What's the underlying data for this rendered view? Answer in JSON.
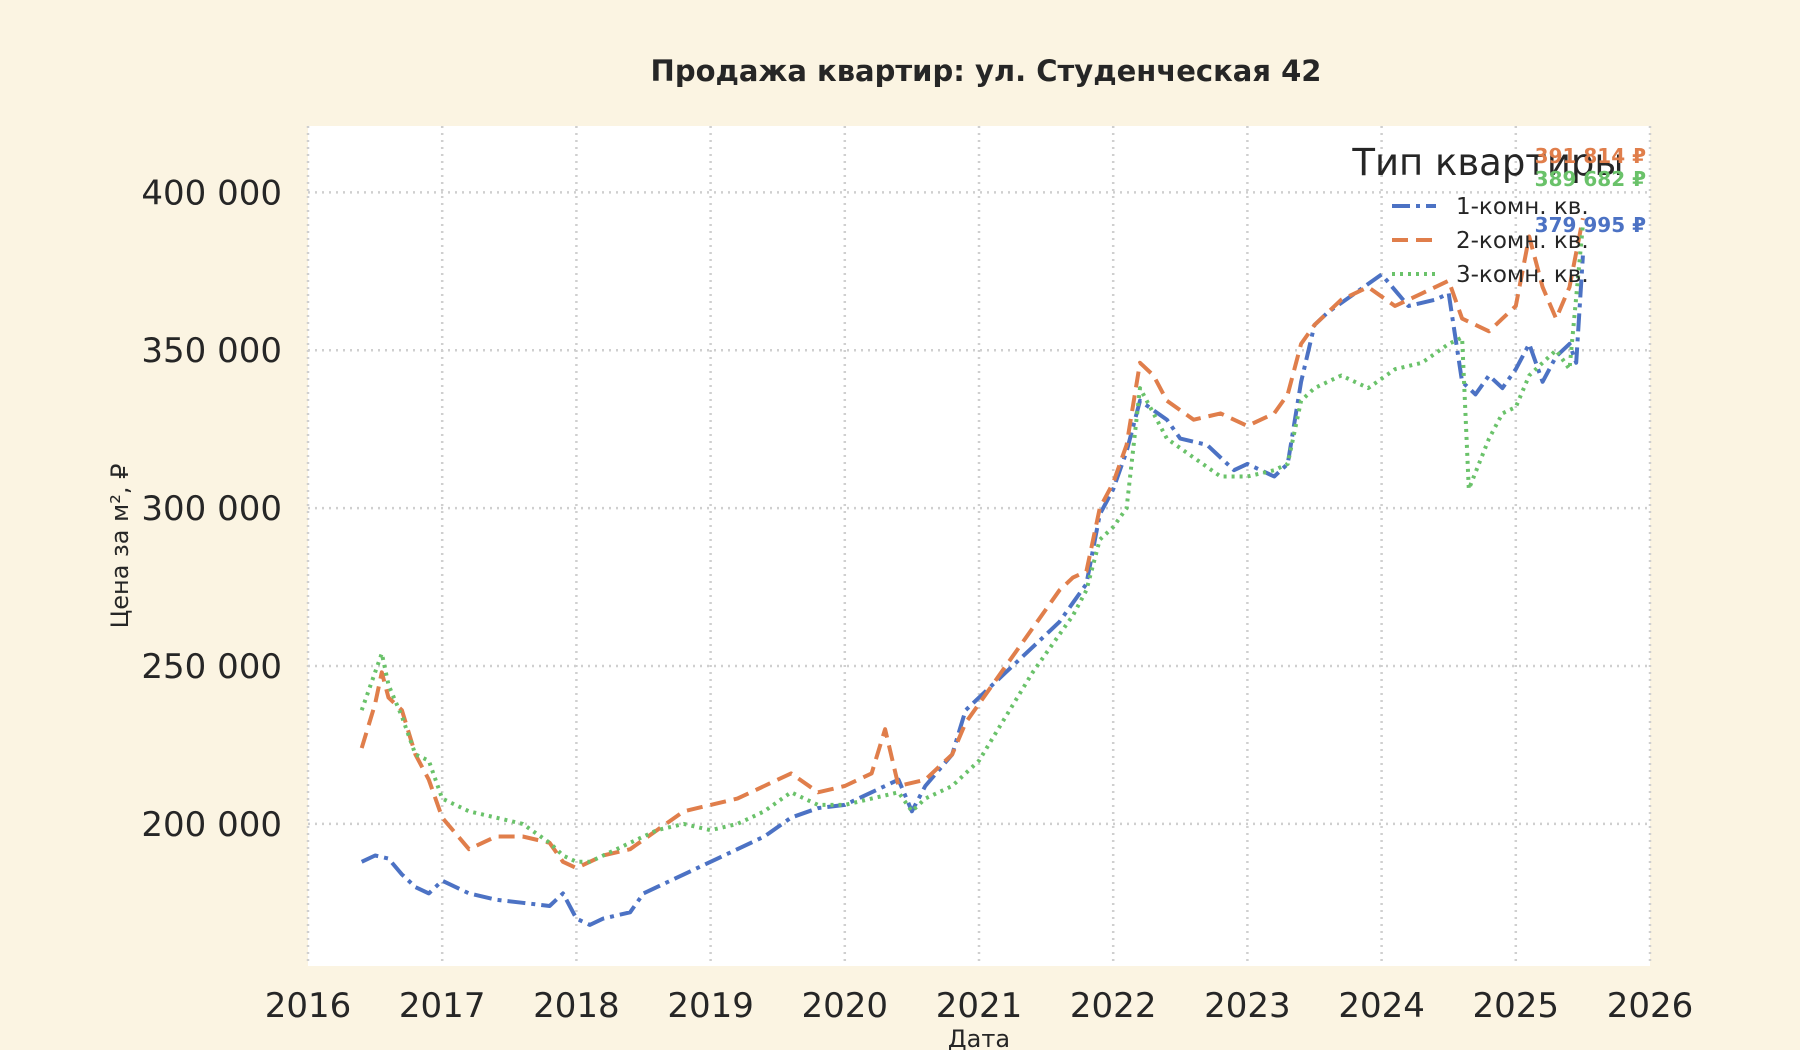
{
  "chart_data": {
    "type": "line",
    "title": "Продажа квартир: ул. Студенческая 42",
    "xlabel": "Дата",
    "ylabel": "Цена за м², ₽",
    "xlim": [
      2016,
      2026
    ],
    "ylim": [
      155000,
      421000
    ],
    "x_ticks": [
      2016,
      2017,
      2018,
      2019,
      2020,
      2021,
      2022,
      2023,
      2024,
      2025,
      2026
    ],
    "y_ticks": [
      200000,
      250000,
      300000,
      350000,
      400000
    ],
    "y_tick_labels": [
      "200 000",
      "250 000",
      "300 000",
      "350 000",
      "400 000"
    ],
    "grid": true,
    "legend": {
      "title": "Тип квартиры",
      "placement": "top-right",
      "entries": [
        "1-комн. кв.",
        "2-комн. кв.",
        "3-комн. кв."
      ]
    },
    "colors": {
      "one_room": "#4c72c4",
      "two_room": "#e07e4b",
      "three_room": "#6ac26a",
      "plot_bg": "#ffffff",
      "figure_bg": "#fbf4e2",
      "grid": "#cfcfcf"
    },
    "series": [
      {
        "name": "1-комн. кв.",
        "color": "#4c72c4",
        "dash": "dashdot",
        "end_label": "379 995 ₽",
        "x": [
          2016.4,
          2016.5,
          2016.6,
          2016.7,
          2016.8,
          2016.9,
          2017.0,
          2017.2,
          2017.4,
          2017.6,
          2017.8,
          2017.9,
          2018.0,
          2018.1,
          2018.2,
          2018.4,
          2018.5,
          2018.6,
          2018.8,
          2018.9,
          2019.0,
          2019.2,
          2019.4,
          2019.6,
          2019.8,
          2020.0,
          2020.2,
          2020.4,
          2020.5,
          2020.6,
          2020.8,
          2020.9,
          2021.0,
          2021.2,
          2021.4,
          2021.6,
          2021.7,
          2021.8,
          2021.9,
          2022.0,
          2022.1,
          2022.2,
          2022.4,
          2022.5,
          2022.7,
          2022.9,
          2023.0,
          2023.2,
          2023.3,
          2023.4,
          2023.5,
          2023.6,
          2023.8,
          2024.0,
          2024.2,
          2024.4,
          2024.5,
          2024.6,
          2024.7,
          2024.8,
          2024.9,
          2025.0,
          2025.1,
          2025.2,
          2025.3,
          2025.4,
          2025.45,
          2025.5
        ],
        "y": [
          188000,
          190000,
          189000,
          184000,
          180000,
          178000,
          182000,
          178000,
          176000,
          175000,
          174000,
          178000,
          170000,
          168000,
          170000,
          172000,
          178000,
          180000,
          184000,
          186000,
          188000,
          192000,
          196000,
          202000,
          205000,
          206000,
          210000,
          214000,
          204000,
          212000,
          222000,
          236000,
          240000,
          248000,
          256000,
          264000,
          270000,
          276000,
          298000,
          306000,
          318000,
          334000,
          328000,
          322000,
          320000,
          312000,
          314000,
          310000,
          314000,
          340000,
          358000,
          362000,
          368000,
          374000,
          364000,
          366000,
          368000,
          340000,
          336000,
          342000,
          338000,
          344000,
          352000,
          340000,
          348000,
          352000,
          346000,
          379995
        ]
      },
      {
        "name": "2-комн. кв.",
        "color": "#e07e4b",
        "dash": "dashed",
        "end_label": "391 814 ₽",
        "x": [
          2016.4,
          2016.5,
          2016.55,
          2016.6,
          2016.7,
          2016.8,
          2016.9,
          2017.0,
          2017.2,
          2017.4,
          2017.6,
          2017.8,
          2017.9,
          2018.0,
          2018.1,
          2018.2,
          2018.4,
          2018.6,
          2018.8,
          2019.0,
          2019.2,
          2019.4,
          2019.6,
          2019.8,
          2020.0,
          2020.2,
          2020.3,
          2020.4,
          2020.6,
          2020.8,
          2020.9,
          2021.0,
          2021.2,
          2021.4,
          2021.6,
          2021.7,
          2021.8,
          2021.9,
          2022.0,
          2022.1,
          2022.2,
          2022.3,
          2022.4,
          2022.6,
          2022.8,
          2023.0,
          2023.2,
          2023.3,
          2023.4,
          2023.5,
          2023.7,
          2023.9,
          2024.1,
          2024.3,
          2024.5,
          2024.6,
          2024.8,
          2024.9,
          2025.0,
          2025.1,
          2025.2,
          2025.3,
          2025.4,
          2025.5
        ],
        "y": [
          224000,
          238000,
          248000,
          240000,
          236000,
          222000,
          214000,
          202000,
          192000,
          196000,
          196000,
          194000,
          188000,
          186000,
          188000,
          190000,
          192000,
          198000,
          204000,
          206000,
          208000,
          212000,
          216000,
          210000,
          212000,
          216000,
          230000,
          212000,
          214000,
          222000,
          232000,
          238000,
          250000,
          262000,
          274000,
          278000,
          280000,
          300000,
          308000,
          320000,
          346000,
          342000,
          334000,
          328000,
          330000,
          326000,
          330000,
          336000,
          352000,
          358000,
          366000,
          370000,
          364000,
          368000,
          372000,
          360000,
          356000,
          360000,
          364000,
          386000,
          370000,
          360000,
          370000,
          391814
        ]
      },
      {
        "name": "3-комн. кв.",
        "color": "#6ac26a",
        "dash": "dotted",
        "end_label": "389 682 ₽",
        "x": [
          2016.4,
          2016.5,
          2016.55,
          2016.6,
          2016.7,
          2016.8,
          2016.9,
          2017.0,
          2017.2,
          2017.4,
          2017.6,
          2017.8,
          2017.9,
          2018.0,
          2018.1,
          2018.2,
          2018.4,
          2018.6,
          2018.8,
          2019.0,
          2019.2,
          2019.4,
          2019.6,
          2019.8,
          2020.0,
          2020.2,
          2020.4,
          2020.5,
          2020.6,
          2020.8,
          2021.0,
          2021.2,
          2021.4,
          2021.6,
          2021.7,
          2021.8,
          2021.9,
          2022.0,
          2022.1,
          2022.2,
          2022.4,
          2022.6,
          2022.8,
          2023.0,
          2023.2,
          2023.3,
          2023.4,
          2023.5,
          2023.7,
          2023.9,
          2024.1,
          2024.3,
          2024.5,
          2024.6,
          2024.65,
          2024.8,
          2024.9,
          2025.0,
          2025.1,
          2025.2,
          2025.3,
          2025.4,
          2025.5
        ],
        "y": [
          236000,
          248000,
          254000,
          244000,
          234000,
          222000,
          220000,
          208000,
          204000,
          202000,
          200000,
          194000,
          190000,
          188000,
          188000,
          190000,
          194000,
          198000,
          200000,
          198000,
          200000,
          204000,
          210000,
          206000,
          206000,
          208000,
          210000,
          204000,
          208000,
          212000,
          220000,
          234000,
          248000,
          260000,
          266000,
          274000,
          290000,
          294000,
          300000,
          338000,
          322000,
          316000,
          310000,
          310000,
          312000,
          314000,
          334000,
          338000,
          342000,
          338000,
          344000,
          346000,
          352000,
          354000,
          306000,
          322000,
          330000,
          332000,
          342000,
          346000,
          350000,
          344000,
          389682
        ]
      }
    ]
  }
}
